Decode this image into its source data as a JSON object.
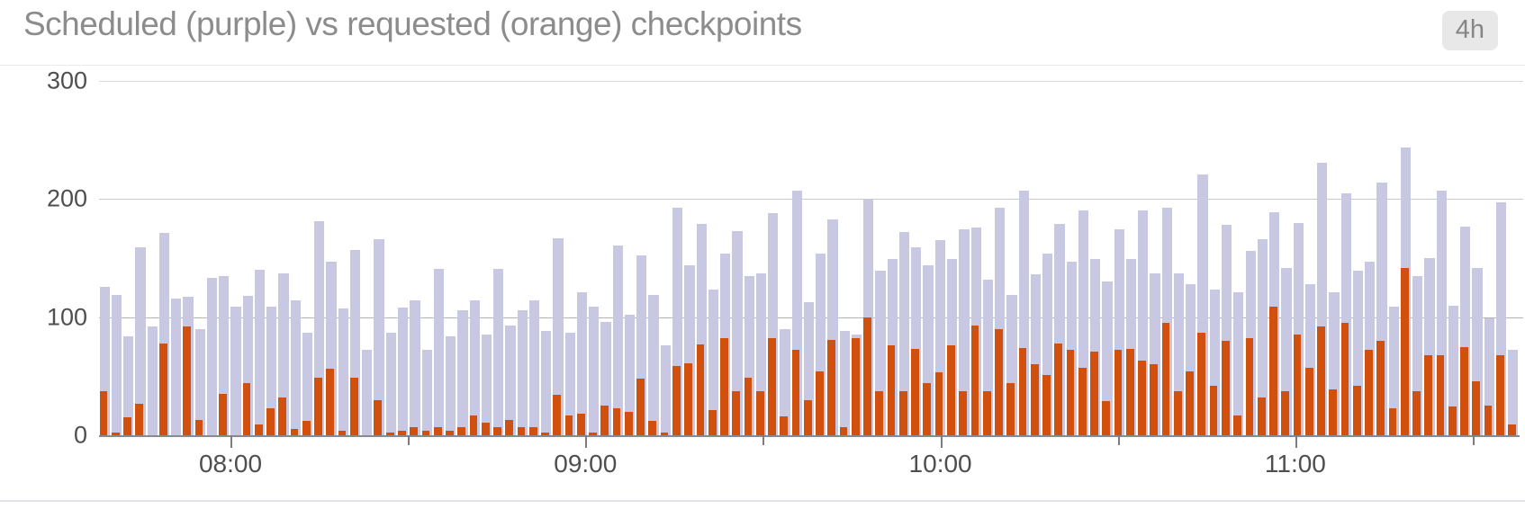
{
  "header": {
    "title": "Scheduled (purple) vs requested (orange) checkpoints",
    "time_range_badge": "4h"
  },
  "chart_data": {
    "type": "bar",
    "title": "Scheduled (purple) vs requested (orange) checkpoints",
    "time_window": "4h",
    "grid": true,
    "legend_position": "none (series colors named in title)",
    "x_axis": {
      "tick_labels": [
        "08:00",
        "09:00",
        "10:00",
        "11:00"
      ],
      "minor_tick_interval_minutes": 30
    },
    "y_axis": {
      "ticks": [
        0,
        100,
        200,
        300
      ],
      "max": 300
    },
    "series": [
      {
        "name": "scheduled",
        "color": "#c9c8e2",
        "values": [
          126,
          119,
          84,
          159,
          92,
          171,
          116,
          117,
          90,
          133,
          135,
          109,
          118,
          140,
          109,
          137,
          114,
          87,
          181,
          147,
          107,
          157,
          72,
          166,
          87,
          108,
          114,
          72,
          141,
          84,
          106,
          114,
          85,
          141,
          93,
          106,
          114,
          88,
          167,
          87,
          121,
          109,
          96,
          161,
          102,
          152,
          119,
          76,
          193,
          144,
          179,
          123,
          154,
          173,
          135,
          137,
          188,
          90,
          207,
          113,
          154,
          183,
          88,
          85,
          200,
          139,
          149,
          172,
          159,
          144,
          165,
          149,
          174,
          176,
          132,
          193,
          119,
          207,
          136,
          154,
          179,
          147,
          190,
          149,
          130,
          174,
          149,
          190,
          137,
          193,
          137,
          128,
          221,
          123,
          178,
          121,
          156,
          166,
          189,
          142,
          180,
          128,
          231,
          121,
          205,
          139,
          147,
          214,
          109,
          244,
          135,
          150,
          207,
          110,
          177,
          142,
          99,
          197,
          72
        ]
      },
      {
        "name": "requested",
        "color": "#d2500e",
        "values": [
          37,
          2,
          15,
          27,
          0,
          78,
          0,
          92,
          13,
          0,
          35,
          0,
          44,
          9,
          23,
          32,
          5,
          12,
          49,
          56,
          4,
          49,
          0,
          30,
          2,
          4,
          7,
          4,
          7,
          4,
          7,
          17,
          11,
          7,
          13,
          7,
          7,
          2,
          34,
          17,
          18,
          2,
          25,
          23,
          20,
          48,
          12,
          2,
          59,
          61,
          77,
          21,
          82,
          37,
          49,
          37,
          82,
          16,
          72,
          30,
          54,
          81,
          7,
          82,
          100,
          37,
          76,
          37,
          73,
          44,
          53,
          76,
          37,
          93,
          37,
          90,
          44,
          74,
          60,
          51,
          78,
          72,
          57,
          71,
          29,
          72,
          73,
          63,
          60,
          95,
          37,
          54,
          87,
          42,
          80,
          17,
          82,
          32,
          109,
          37,
          85,
          57,
          92,
          39,
          95,
          42,
          72,
          80,
          23,
          142,
          37,
          68,
          68,
          24,
          75,
          46,
          25,
          68,
          9
        ]
      }
    ]
  },
  "colors": {
    "title_text": "#8c8c8c",
    "badge_background": "#e8e8e8",
    "badge_text": "#868686",
    "axis_line": "#8a8a8a",
    "tick_label_text": "#4f4f4f",
    "gridline_100": "#b3b3b3",
    "gridline_200": "#c9c9c9",
    "gridline_300": "#d9d9d9"
  }
}
